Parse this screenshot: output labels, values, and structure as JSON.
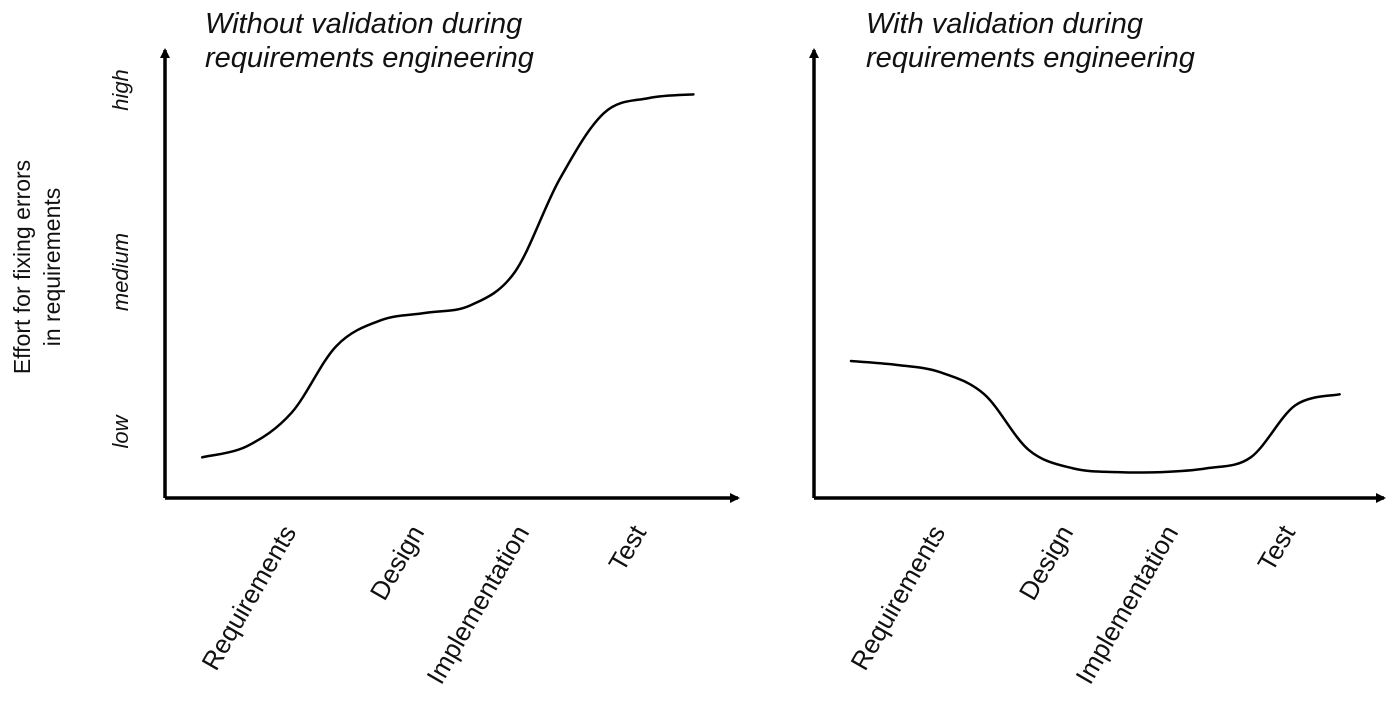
{
  "y_axis_label_lines": [
    "Effort for fixing errors",
    "in requirements"
  ],
  "y_levels": [
    "low",
    "medium",
    "high"
  ],
  "chart_data": [
    {
      "type": "line",
      "title_lines": [
        "Without validation during",
        "requirements engineering"
      ],
      "categories": [
        "Requirements",
        "Design",
        "Implementation",
        "Test"
      ],
      "x": [
        0,
        0.3,
        0.6,
        0.9,
        1.2,
        1.5,
        1.8,
        2.1,
        2.4,
        2.7,
        3.0,
        3.3
      ],
      "y": [
        0.05,
        0.08,
        0.17,
        0.35,
        0.42,
        0.44,
        0.46,
        0.55,
        0.8,
        0.98,
        1.02,
        1.03
      ],
      "ylim": [
        -0.06,
        1.15
      ],
      "xlim": [
        -0.25,
        3.6
      ],
      "y_level_values": [
        0.0,
        0.5,
        1.0
      ]
    },
    {
      "type": "line",
      "title_lines": [
        "With validation during",
        "requirements engineering"
      ],
      "categories": [
        "Requirements",
        "Design",
        "Implementation",
        "Test"
      ],
      "x": [
        0,
        0.3,
        0.6,
        0.9,
        1.2,
        1.5,
        1.8,
        2.1,
        2.4,
        2.7,
        3.0,
        3.3
      ],
      "y": [
        0.31,
        0.3,
        0.28,
        0.22,
        0.07,
        0.02,
        0.01,
        0.01,
        0.02,
        0.05,
        0.19,
        0.22
      ],
      "ylim": [
        -0.06,
        1.15
      ],
      "xlim": [
        -0.25,
        3.6
      ],
      "y_level_values": [
        0.0,
        0.5,
        1.0
      ]
    }
  ]
}
